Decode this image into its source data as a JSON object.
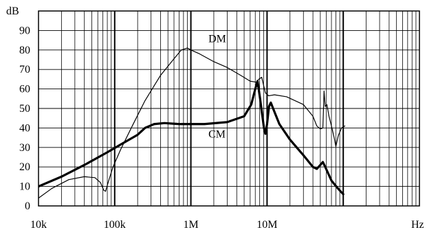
{
  "chart_data": {
    "type": "line",
    "xscale": "log",
    "xlim": [
      10000,
      1000000000
    ],
    "ylim": [
      0,
      100
    ],
    "grid": true,
    "ylabel": "dB",
    "xlabel": "Hz",
    "yticks": [
      0,
      10,
      20,
      30,
      40,
      50,
      60,
      70,
      80,
      90
    ],
    "xticks": [
      {
        "value": 10000,
        "label": "10k"
      },
      {
        "value": 100000,
        "label": "100k"
      },
      {
        "value": 1000000,
        "label": "1M"
      },
      {
        "value": 10000000,
        "label": "10M"
      }
    ],
    "series": [
      {
        "name": "DM",
        "values": [
          [
            10000,
            4
          ],
          [
            15000,
            9
          ],
          [
            25000,
            13.5
          ],
          [
            40000,
            15
          ],
          [
            55000,
            14.5
          ],
          [
            65000,
            12
          ],
          [
            72000,
            8
          ],
          [
            76000,
            7.5
          ],
          [
            82000,
            12
          ],
          [
            95000,
            20
          ],
          [
            120000,
            29
          ],
          [
            170000,
            41
          ],
          [
            250000,
            54
          ],
          [
            400000,
            67
          ],
          [
            600000,
            75.5
          ],
          [
            750000,
            80
          ],
          [
            900000,
            81
          ],
          [
            1000000,
            80
          ],
          [
            1300000,
            78
          ],
          [
            2000000,
            74
          ],
          [
            3000000,
            71
          ],
          [
            4500000,
            67
          ],
          [
            6000000,
            64
          ],
          [
            7200000,
            63.5
          ],
          [
            7800000,
            65
          ],
          [
            8500000,
            66
          ],
          [
            9500000,
            58
          ],
          [
            10500000,
            56.5
          ],
          [
            12500000,
            57
          ],
          [
            18000000,
            56
          ],
          [
            30000000,
            52
          ],
          [
            40000000,
            46
          ],
          [
            45000000,
            41
          ],
          [
            50000000,
            39.5
          ],
          [
            54000000,
            40
          ],
          [
            56000000,
            59
          ],
          [
            58000000,
            51
          ],
          [
            61000000,
            52
          ],
          [
            65000000,
            46
          ],
          [
            70000000,
            41
          ],
          [
            76000000,
            35
          ],
          [
            80000000,
            30.5
          ],
          [
            86000000,
            36
          ],
          [
            95000000,
            40
          ],
          [
            105000000,
            41
          ]
        ]
      },
      {
        "name": "CM",
        "values": [
          [
            10000,
            10
          ],
          [
            20000,
            15
          ],
          [
            40000,
            21
          ],
          [
            80000,
            27.5
          ],
          [
            120000,
            31.5
          ],
          [
            200000,
            36.5
          ],
          [
            250000,
            40
          ],
          [
            330000,
            42
          ],
          [
            450000,
            42.5
          ],
          [
            700000,
            42
          ],
          [
            1500000,
            42
          ],
          [
            3000000,
            43
          ],
          [
            5000000,
            46
          ],
          [
            6200000,
            52
          ],
          [
            7000000,
            60
          ],
          [
            7500000,
            64
          ],
          [
            8100000,
            55
          ],
          [
            9100000,
            40
          ],
          [
            9500000,
            37
          ],
          [
            10000000,
            42
          ],
          [
            10600000,
            51
          ],
          [
            11200000,
            53
          ],
          [
            12000000,
            50
          ],
          [
            14500000,
            42
          ],
          [
            20000000,
            34
          ],
          [
            30000000,
            26
          ],
          [
            40000000,
            20
          ],
          [
            45000000,
            19
          ],
          [
            50000000,
            21
          ],
          [
            54000000,
            22.5
          ],
          [
            58000000,
            20
          ],
          [
            70000000,
            13
          ],
          [
            85000000,
            9
          ],
          [
            100000000,
            6
          ]
        ]
      }
    ],
    "labels": [
      {
        "text": "DM",
        "x": 1700000,
        "y": 84
      },
      {
        "text": "CM",
        "x": 1700000,
        "y": 35
      }
    ]
  }
}
